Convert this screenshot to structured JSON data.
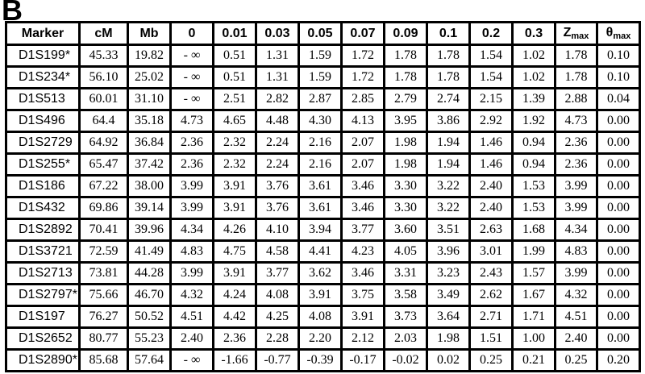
{
  "panel_label": "B",
  "table": {
    "columns": [
      {
        "label": "Marker"
      },
      {
        "label": "cM"
      },
      {
        "label": "Mb"
      },
      {
        "label": "0"
      },
      {
        "label": "0.01"
      },
      {
        "label": "0.03"
      },
      {
        "label": "0.05"
      },
      {
        "label": "0.07"
      },
      {
        "label": "0.09"
      },
      {
        "label": "0.1"
      },
      {
        "label": "0.2"
      },
      {
        "label": "0.3"
      },
      {
        "label": "Z",
        "sub": "max"
      },
      {
        "label": "θ",
        "sub": "max"
      }
    ],
    "rows": [
      [
        "D1S199*",
        "45.33",
        "19.82",
        "- ∞",
        "0.51",
        "1.31",
        "1.59",
        "1.72",
        "1.78",
        "1.78",
        "1.54",
        "1.02",
        "1.78",
        "0.10"
      ],
      [
        "D1S234*",
        "56.10",
        "25.02",
        "- ∞",
        "0.51",
        "1.31",
        "1.59",
        "1.72",
        "1.78",
        "1.78",
        "1.54",
        "1.02",
        "1.78",
        "0.10"
      ],
      [
        "D1S513",
        "60.01",
        "31.10",
        "- ∞",
        "2.51",
        "2.82",
        "2.87",
        "2.85",
        "2.79",
        "2.74",
        "2.15",
        "1.39",
        "2.88",
        "0.04"
      ],
      [
        "D1S496",
        "64.4",
        "35.18",
        "4.73",
        "4.65",
        "4.48",
        "4.30",
        "4.13",
        "3.95",
        "3.86",
        "2.92",
        "1.92",
        "4.73",
        "0.00"
      ],
      [
        "D1S2729",
        "64.92",
        "36.84",
        "2.36",
        "2.32",
        "2.24",
        "2.16",
        "2.07",
        "1.98",
        "1.94",
        "1.46",
        "0.94",
        "2.36",
        "0.00"
      ],
      [
        "D1S255*",
        "65.47",
        "37.42",
        "2.36",
        "2.32",
        "2.24",
        "2.16",
        "2.07",
        "1.98",
        "1.94",
        "1.46",
        "0.94",
        "2.36",
        "0.00"
      ],
      [
        "D1S186",
        "67.22",
        "38.00",
        "3.99",
        "3.91",
        "3.76",
        "3.61",
        "3.46",
        "3.30",
        "3.22",
        "2.40",
        "1.53",
        "3.99",
        "0.00"
      ],
      [
        "D1S432",
        "69.86",
        "39.14",
        "3.99",
        "3.91",
        "3.76",
        "3.61",
        "3.46",
        "3.30",
        "3.22",
        "2.40",
        "1.53",
        "3.99",
        "0.00"
      ],
      [
        "D1S2892",
        "70.41",
        "39.96",
        "4.34",
        "4.26",
        "4.10",
        "3.94",
        "3.77",
        "3.60",
        "3.51",
        "2.63",
        "1.68",
        "4.34",
        "0.00"
      ],
      [
        "D1S3721",
        "72.59",
        "41.49",
        "4.83",
        "4.75",
        "4.58",
        "4.41",
        "4.23",
        "4.05",
        "3.96",
        "3.01",
        "1.99",
        "4.83",
        "0.00"
      ],
      [
        "D1S2713",
        "73.81",
        "44.28",
        "3.99",
        "3.91",
        "3.77",
        "3.62",
        "3.46",
        "3.31",
        "3.23",
        "2.43",
        "1.57",
        "3.99",
        "0.00"
      ],
      [
        "D1S2797*",
        "75.66",
        "46.70",
        "4.32",
        "4.24",
        "4.08",
        "3.91",
        "3.75",
        "3.58",
        "3.49",
        "2.62",
        "1.67",
        "4.32",
        "0.00"
      ],
      [
        "D1S197",
        "76.27",
        "50.52",
        "4.51",
        "4.42",
        "4.25",
        "4.08",
        "3.91",
        "3.73",
        "3.64",
        "2.71",
        "1.71",
        "4.51",
        "0.00"
      ],
      [
        "D1S2652",
        "80.77",
        "55.23",
        "2.40",
        "2.36",
        "2.28",
        "2.20",
        "2.12",
        "2.03",
        "1.98",
        "1.51",
        "1.00",
        "2.40",
        "0.00"
      ],
      [
        "D1S2890*",
        "85.68",
        "57.64",
        "- ∞",
        "-1.66",
        "-0.77",
        "-0.39",
        "-0.17",
        "-0.02",
        "0.02",
        "0.25",
        "0.21",
        "0.25",
        "0.20"
      ]
    ]
  },
  "colors": {
    "border": "#000000",
    "text": "#000000",
    "background": "#ffffff"
  }
}
